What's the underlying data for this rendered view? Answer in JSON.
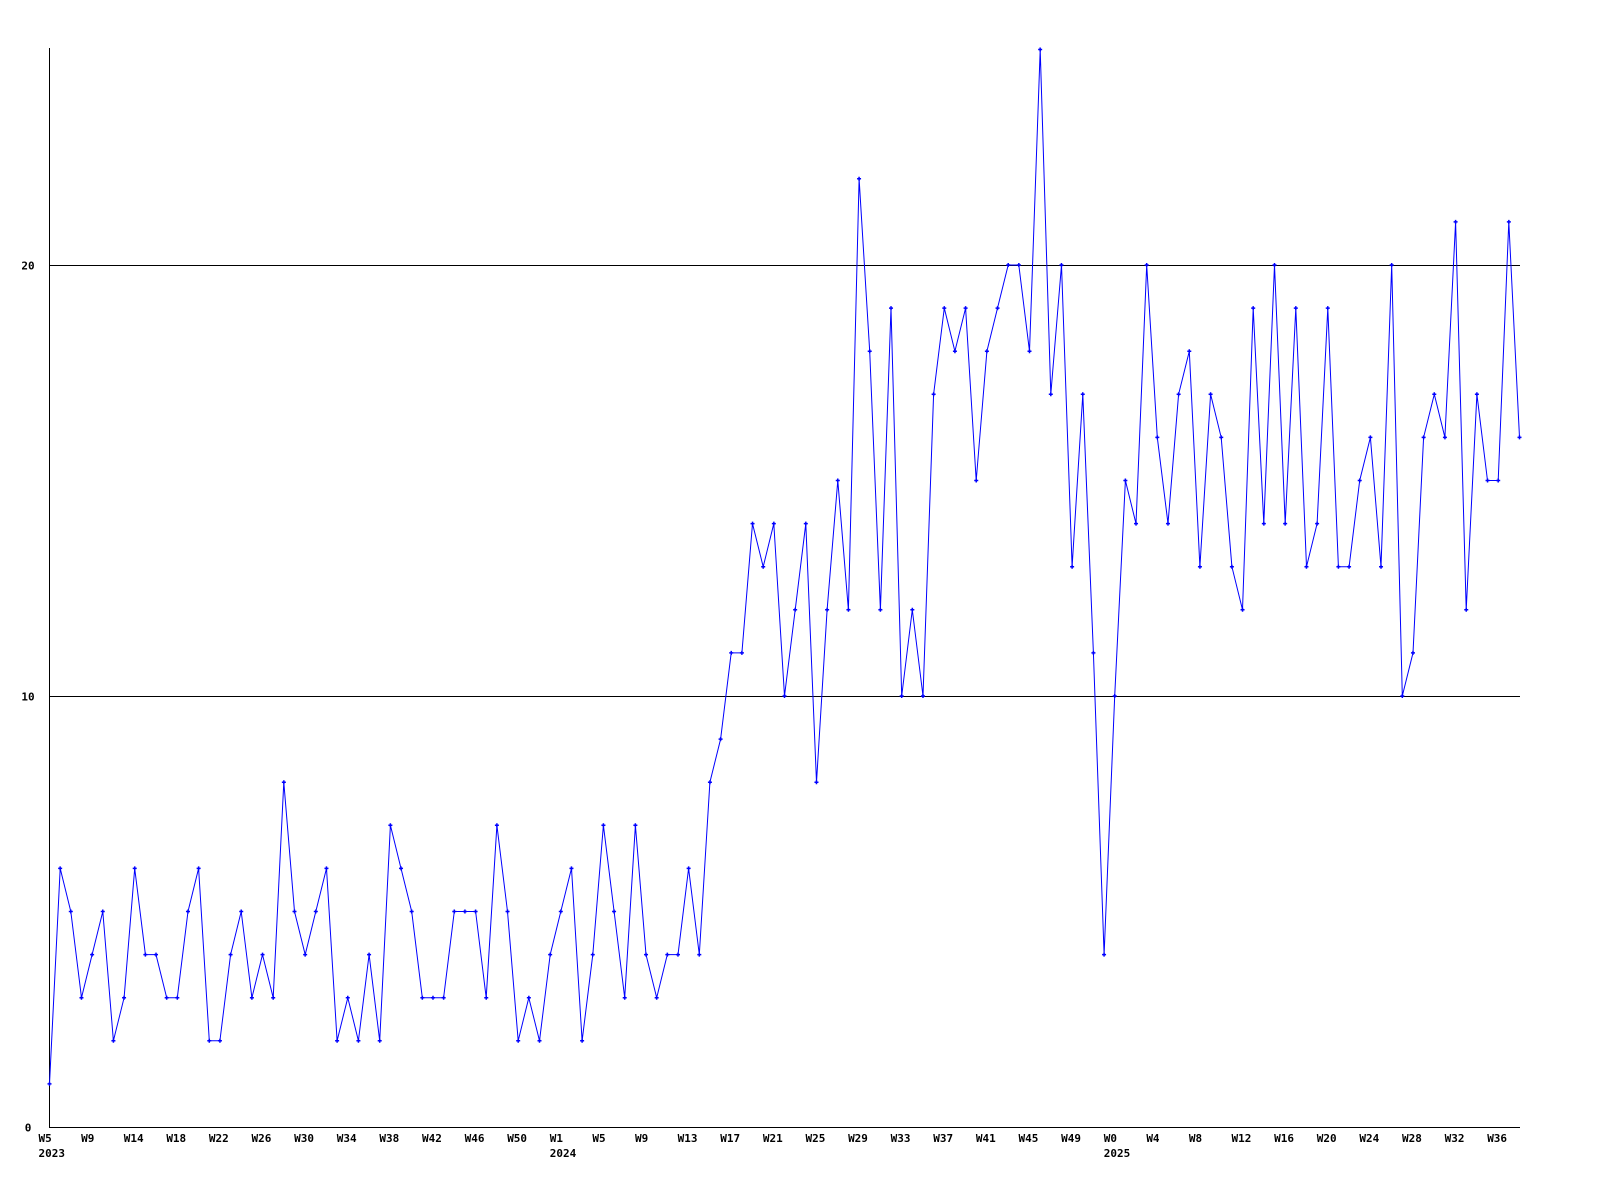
{
  "chart_data": {
    "type": "line",
    "title": "",
    "xlabel": "",
    "ylabel": "",
    "ylim": [
      0,
      25
    ],
    "yticks": [
      0,
      10,
      20
    ],
    "ytick_labels": [
      "0",
      "10",
      "20"
    ],
    "grid": "horizontal lines at 10 and 20",
    "line_color": "#0000ff",
    "x_tick_labels": [
      "W5",
      "W9",
      "W14",
      "W18",
      "W22",
      "W26",
      "W30",
      "W34",
      "W38",
      "W42",
      "W46",
      "W50",
      "W1",
      "W5",
      "W9",
      "W13",
      "W17",
      "W21",
      "W25",
      "W29",
      "W33",
      "W37",
      "W41",
      "W45",
      "W49",
      "W0",
      "W4",
      "W8",
      "W12",
      "W16",
      "W20",
      "W24",
      "W28",
      "W32",
      "W36"
    ],
    "year_labels": [
      {
        "label": "2023",
        "at_tick": "W5"
      },
      {
        "label": "2024",
        "at_tick": "W1"
      },
      {
        "label": "2025",
        "at_tick": "W0"
      }
    ],
    "values": [
      1,
      6,
      5,
      3,
      4,
      5,
      2,
      3,
      6,
      4,
      4,
      3,
      3,
      5,
      6,
      2,
      2,
      4,
      5,
      3,
      4,
      3,
      8,
      5,
      4,
      5,
      6,
      2,
      3,
      2,
      4,
      2,
      7,
      6,
      5,
      3,
      3,
      3,
      5,
      5,
      5,
      3,
      7,
      5,
      2,
      3,
      2,
      4,
      5,
      6,
      2,
      4,
      7,
      5,
      3,
      7,
      4,
      3,
      4,
      4,
      6,
      4,
      8,
      9,
      11,
      11,
      14,
      13,
      14,
      10,
      12,
      14,
      8,
      12,
      15,
      12,
      22,
      18,
      12,
      19,
      10,
      12,
      10,
      17,
      19,
      18,
      19,
      15,
      18,
      19,
      20,
      20,
      18,
      25,
      17,
      20,
      13,
      17,
      11,
      4,
      10,
      15,
      14,
      20,
      16,
      14,
      17,
      18,
      13,
      17,
      16,
      13,
      12,
      19,
      14,
      20,
      14,
      19,
      13,
      14,
      19,
      13,
      13,
      15,
      16,
      13,
      20,
      10,
      11,
      16,
      17,
      16,
      21,
      12,
      17,
      15,
      15,
      21,
      16
    ]
  }
}
